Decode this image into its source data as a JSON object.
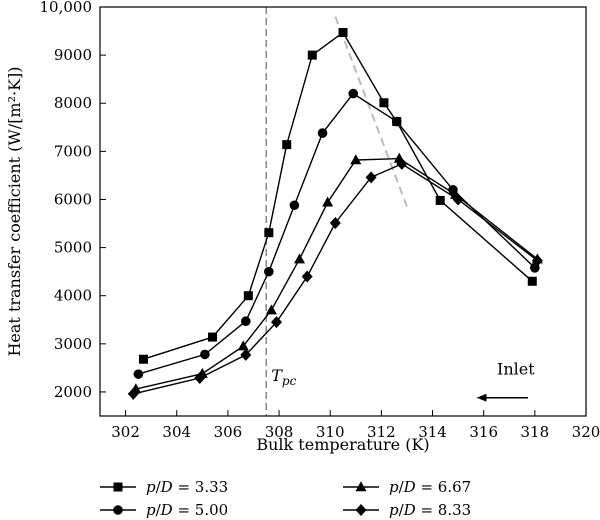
{
  "chart_data": {
    "type": "line",
    "xlabel": "Bulk temperature (K)",
    "ylabel": "Heat transfer coefficient (W/[m²·K])",
    "xlim": [
      301,
      320
    ],
    "ylim": [
      1500,
      10000
    ],
    "xticks": [
      302,
      304,
      306,
      308,
      310,
      312,
      314,
      316,
      318,
      320
    ],
    "yticks": [
      2000,
      3000,
      4000,
      5000,
      6000,
      7000,
      8000,
      9000,
      10000
    ],
    "ytick_labels": [
      "2000",
      "3000",
      "4000",
      "5000",
      "6000",
      "7000",
      "8000",
      "9000",
      "10,000"
    ],
    "grid": false,
    "legend_position": "bottom",
    "series": [
      {
        "name": "p/D = 3.33",
        "marker": "square",
        "x": [
          302.7,
          305.4,
          306.8,
          307.6,
          308.3,
          309.3,
          310.5,
          312.1,
          312.6,
          314.3,
          317.9
        ],
        "y": [
          2680,
          3140,
          4000,
          5310,
          7140,
          9000,
          9470,
          8010,
          7620,
          5980,
          4300
        ]
      },
      {
        "name": "p/D = 5.00",
        "marker": "circle",
        "x": [
          302.5,
          305.1,
          306.7,
          307.6,
          308.6,
          309.7,
          310.9,
          312.6,
          314.8,
          318.0
        ],
        "y": [
          2370,
          2780,
          3470,
          4500,
          5880,
          7380,
          8200,
          7620,
          6200,
          4580
        ]
      },
      {
        "name": "p/D = 6.67",
        "marker": "triangle",
        "x": [
          302.4,
          305.0,
          306.6,
          307.7,
          308.8,
          309.9,
          311.0,
          312.7,
          314.9,
          318.1
        ],
        "y": [
          2060,
          2380,
          2950,
          3700,
          4760,
          5940,
          6820,
          6850,
          6100,
          4760
        ]
      },
      {
        "name": "p/D = 8.33",
        "marker": "diamond",
        "x": [
          302.3,
          304.9,
          306.7,
          307.9,
          309.1,
          310.2,
          311.6,
          312.8,
          315.0,
          318.1
        ],
        "y": [
          1960,
          2290,
          2770,
          3450,
          4400,
          5510,
          6460,
          6740,
          6000,
          4730
        ]
      }
    ],
    "annotations": {
      "tpc_line_x": 307.5,
      "tpc_main": "T",
      "tpc_sub": "pc",
      "trend_line": {
        "x": [
          310.2,
          313.0
        ],
        "y": [
          9800,
          5850
        ]
      },
      "inlet_label": "Inlet",
      "inlet_arrow": {
        "x_from": 318.2,
        "x_to": 316.0,
        "y": 2150
      }
    }
  }
}
